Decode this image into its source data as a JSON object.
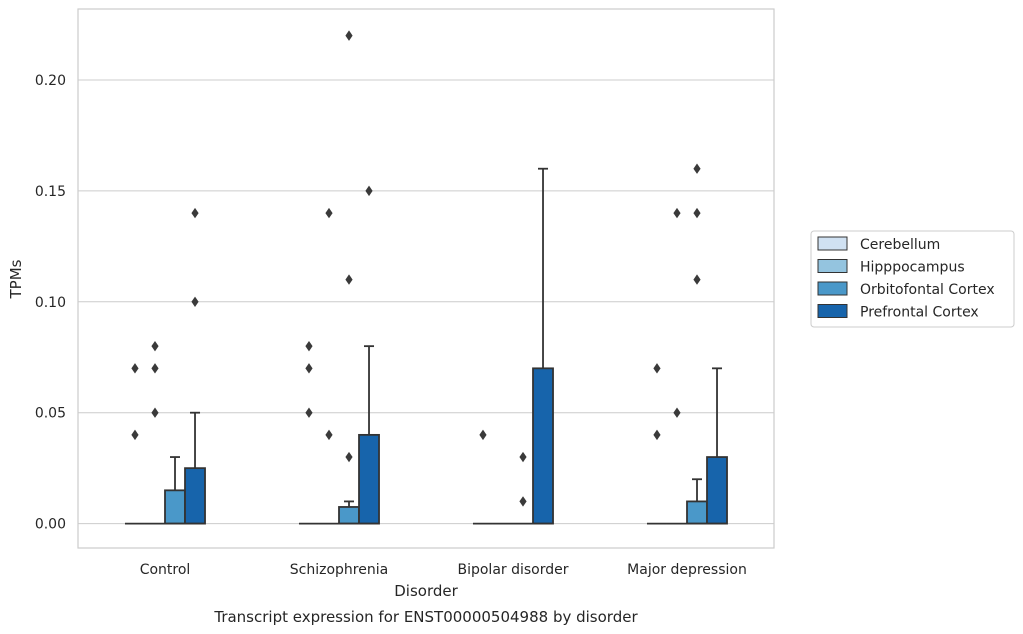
{
  "chart_data": {
    "type": "box",
    "title": "Transcript expression for ENST00000504988 by disorder",
    "xlabel": "Disorder",
    "ylabel": "TPMs",
    "ylim": [
      -0.011,
      0.232
    ],
    "yticks": [
      "0.00",
      "0.05",
      "0.10",
      "0.15",
      "0.20"
    ],
    "ytick_values": [
      0.0,
      0.05,
      0.1,
      0.15,
      0.2
    ],
    "grid": "horizontal",
    "legend_position": "right",
    "categories": [
      "Control",
      "Schizophrenia",
      "Bipolar disorder",
      "Major depression"
    ],
    "series": [
      {
        "name": "Cerebellum",
        "color": "#d0e1f2",
        "boxes": [
          {
            "q1": 0,
            "median": 0,
            "q3": 0,
            "whisker_low": 0,
            "whisker_high": 0,
            "outliers": [
              0.04,
              0.07
            ]
          },
          {
            "q1": 0,
            "median": 0,
            "q3": 0,
            "whisker_low": 0,
            "whisker_high": 0,
            "outliers": [
              0.05,
              0.07,
              0.08
            ]
          },
          {
            "q1": 0,
            "median": 0,
            "q3": 0,
            "whisker_low": 0,
            "whisker_high": 0,
            "outliers": [
              0.04
            ]
          },
          {
            "q1": 0,
            "median": 0,
            "q3": 0,
            "whisker_low": 0,
            "whisker_high": 0,
            "outliers": [
              0.04,
              0.07
            ]
          }
        ]
      },
      {
        "name": "Hipppocampus",
        "color": "#94c4df",
        "boxes": [
          {
            "q1": 0,
            "median": 0,
            "q3": 0,
            "whisker_low": 0,
            "whisker_high": 0,
            "outliers": [
              0.05,
              0.07,
              0.08
            ]
          },
          {
            "q1": 0,
            "median": 0,
            "q3": 0,
            "whisker_low": 0,
            "whisker_high": 0,
            "outliers": [
              0.04,
              0.14
            ]
          },
          {
            "q1": 0,
            "median": 0,
            "q3": 0,
            "whisker_low": 0,
            "whisker_high": 0,
            "outliers": []
          },
          {
            "q1": 0,
            "median": 0,
            "q3": 0,
            "whisker_low": 0,
            "whisker_high": 0,
            "outliers": [
              0.05,
              0.14
            ]
          }
        ]
      },
      {
        "name": "Orbitofontal Cortex",
        "color": "#4a98c9",
        "boxes": [
          {
            "q1": 0,
            "median": 0,
            "q3": 0.015,
            "whisker_low": 0,
            "whisker_high": 0.03,
            "outliers": []
          },
          {
            "q1": 0,
            "median": 0,
            "q3": 0.0075,
            "whisker_low": 0,
            "whisker_high": 0.01,
            "outliers": [
              0.03,
              0.11,
              0.22
            ]
          },
          {
            "q1": 0,
            "median": 0,
            "q3": 0,
            "whisker_low": 0,
            "whisker_high": 0,
            "outliers": [
              0.01,
              0.03
            ]
          },
          {
            "q1": 0,
            "median": 0,
            "q3": 0.01,
            "whisker_low": 0,
            "whisker_high": 0.02,
            "outliers": [
              0.11,
              0.14,
              0.16
            ]
          }
        ]
      },
      {
        "name": "Prefrontal Cortex",
        "color": "#1764ab",
        "boxes": [
          {
            "q1": 0,
            "median": 0,
            "q3": 0.025,
            "whisker_low": 0,
            "whisker_high": 0.05,
            "outliers": [
              0.1,
              0.14
            ]
          },
          {
            "q1": 0,
            "median": 0,
            "q3": 0.04,
            "whisker_low": 0,
            "whisker_high": 0.08,
            "outliers": [
              0.15
            ]
          },
          {
            "q1": 0,
            "median": 0,
            "q3": 0.07,
            "whisker_low": 0,
            "whisker_high": 0.16,
            "outliers": []
          },
          {
            "q1": 0,
            "median": 0,
            "q3": 0.03,
            "whisker_low": 0,
            "whisker_high": 0.07,
            "outliers": []
          }
        ]
      }
    ]
  }
}
